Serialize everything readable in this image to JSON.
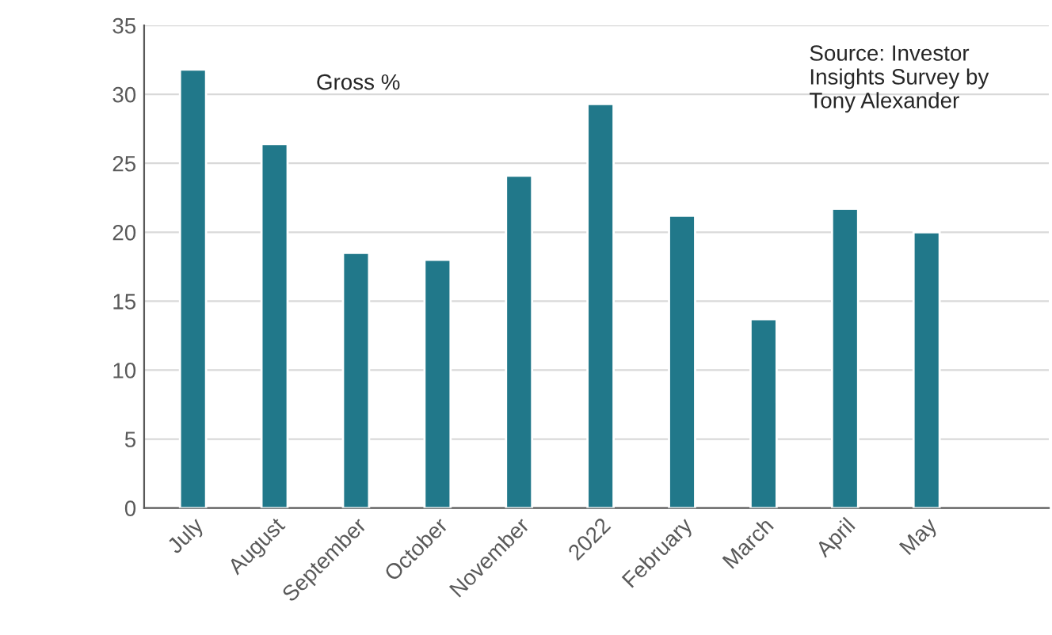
{
  "chart_data": {
    "type": "bar",
    "categories": [
      "July",
      "August",
      "September",
      "October",
      "November",
      "2022",
      "February",
      "March",
      "April",
      "May",
      null
    ],
    "values": [
      31.8,
      26.4,
      18.5,
      18.0,
      24.1,
      29.3,
      21.2,
      13.7,
      21.7,
      20.0,
      null
    ],
    "color": "#21788a",
    "ylim": [
      0,
      35
    ],
    "yticks": [
      0,
      5,
      10,
      15,
      20,
      25,
      30,
      35
    ],
    "grid": "y",
    "annotations": [
      "Gross %",
      "Source: Investor Insights Survey by Tony Alexander"
    ]
  }
}
